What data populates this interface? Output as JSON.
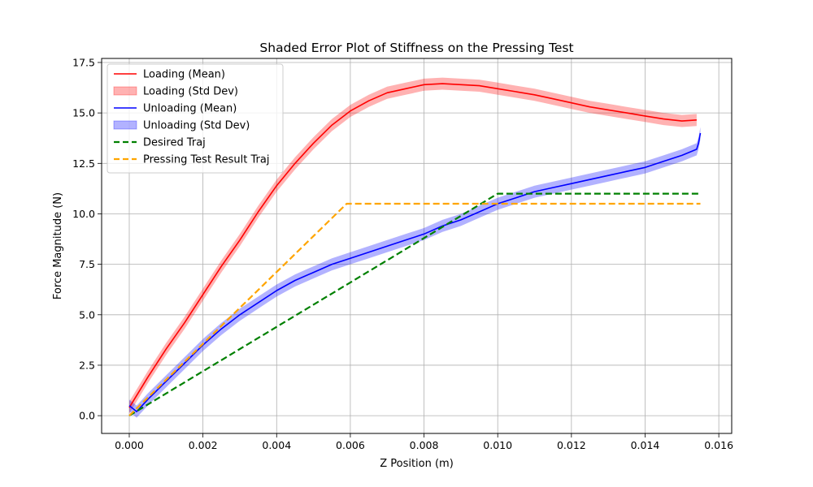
{
  "chart_data": {
    "type": "line",
    "title": "Shaded Error Plot of Stiffness on the Pressing Test",
    "xlabel": "Z Position (m)",
    "ylabel": "Force Magnitude (N)",
    "xlim": [
      -0.00075,
      0.01635
    ],
    "ylim": [
      -0.88,
      17.7
    ],
    "xticks": [
      0.0,
      0.002,
      0.004,
      0.006,
      0.008,
      0.01,
      0.012,
      0.014,
      0.016
    ],
    "xtick_labels": [
      "0.000",
      "0.002",
      "0.004",
      "0.006",
      "0.008",
      "0.010",
      "0.012",
      "0.014",
      "0.016"
    ],
    "yticks": [
      0.0,
      2.5,
      5.0,
      7.5,
      10.0,
      12.5,
      15.0,
      17.5
    ],
    "ytick_labels": [
      "0.0",
      "2.5",
      "5.0",
      "7.5",
      "10.0",
      "12.5",
      "15.0",
      "17.5"
    ],
    "grid": true,
    "legend_position": "upper-left",
    "legend": [
      {
        "label": "Loading (Mean)",
        "kind": "line",
        "color": "#ff0000"
      },
      {
        "label": "Loading (Std Dev)",
        "kind": "patch",
        "color": "#ff0000"
      },
      {
        "label": "Unloading (Mean)",
        "kind": "line",
        "color": "#0000ff"
      },
      {
        "label": "Unloading (Std Dev)",
        "kind": "patch",
        "color": "#0000ff"
      },
      {
        "label": "Desired Traj",
        "kind": "dashed",
        "color": "#008000"
      },
      {
        "label": "Pressing Test Result Traj",
        "kind": "dashed",
        "color": "#ffa500"
      }
    ],
    "series": [
      {
        "name": "Loading (Mean)",
        "color": "#ff0000",
        "style": "solid",
        "x": [
          0.0,
          0.0005,
          0.001,
          0.0015,
          0.002,
          0.0025,
          0.003,
          0.0035,
          0.004,
          0.0045,
          0.005,
          0.0055,
          0.006,
          0.0065,
          0.007,
          0.0075,
          0.008,
          0.0085,
          0.009,
          0.0095,
          0.01,
          0.0105,
          0.011,
          0.0115,
          0.012,
          0.0125,
          0.013,
          0.0135,
          0.014,
          0.0145,
          0.015,
          0.0154
        ],
        "y": [
          0.4,
          1.9,
          3.3,
          4.6,
          6.0,
          7.4,
          8.7,
          10.1,
          11.4,
          12.5,
          13.5,
          14.4,
          15.1,
          15.6,
          16.0,
          16.2,
          16.4,
          16.45,
          16.4,
          16.35,
          16.2,
          16.05,
          15.9,
          15.7,
          15.5,
          15.3,
          15.15,
          15.0,
          14.85,
          14.7,
          14.6,
          14.65
        ]
      },
      {
        "name": "Unloading (Mean)",
        "color": "#0000ff",
        "style": "solid",
        "x": [
          0.0155,
          0.01545,
          0.0154,
          0.015,
          0.0145,
          0.014,
          0.0135,
          0.013,
          0.0125,
          0.012,
          0.0115,
          0.011,
          0.0105,
          0.01,
          0.0095,
          0.009,
          0.0085,
          0.008,
          0.0075,
          0.007,
          0.0065,
          0.006,
          0.0055,
          0.005,
          0.0045,
          0.004,
          0.0035,
          0.003,
          0.0025,
          0.002,
          0.0015,
          0.001,
          0.0005,
          0.0002,
          0.0
        ],
        "y": [
          14.0,
          13.5,
          13.2,
          12.9,
          12.6,
          12.3,
          12.1,
          11.9,
          11.7,
          11.5,
          11.3,
          11.1,
          10.8,
          10.5,
          10.1,
          9.7,
          9.4,
          9.0,
          8.7,
          8.4,
          8.1,
          7.8,
          7.5,
          7.1,
          6.7,
          6.2,
          5.6,
          5.0,
          4.3,
          3.5,
          2.6,
          1.7,
          0.8,
          0.2,
          0.5
        ]
      },
      {
        "name": "Desired Traj",
        "color": "#008000",
        "style": "dashed",
        "x": [
          0.0,
          0.01,
          0.0155
        ],
        "y": [
          0.0,
          11.0,
          11.0
        ]
      },
      {
        "name": "Pressing Test Result Traj",
        "color": "#ffa500",
        "style": "dashed",
        "x": [
          0.0,
          0.0059,
          0.0155
        ],
        "y": [
          0.0,
          10.5,
          10.5
        ]
      }
    ],
    "std_bands": [
      {
        "name": "Loading (Std Dev)",
        "of": "Loading (Mean)",
        "color": "#ff0000",
        "halfwidth": 0.3
      },
      {
        "name": "Unloading (Std Dev)",
        "of": "Unloading (Mean)",
        "color": "#0000ff",
        "halfwidth": 0.3
      }
    ]
  }
}
